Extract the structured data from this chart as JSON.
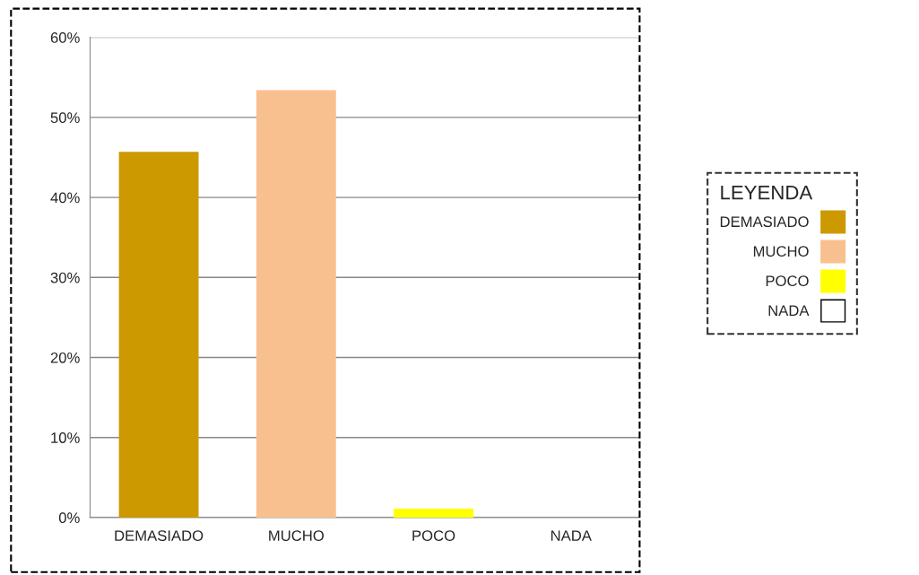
{
  "chart_data": {
    "type": "bar",
    "categories": [
      "DEMASIADO",
      "MUCHO",
      "POCO",
      "NADA"
    ],
    "stacked": true,
    "series": [
      {
        "name": "DEMASIADO",
        "color": "#cc9900",
        "values": [
          45.7,
          null,
          null,
          null
        ]
      },
      {
        "name": "MUCHO",
        "color": "#f9c08f",
        "values": [
          null,
          53.4,
          null,
          null
        ]
      },
      {
        "name": "POCO",
        "color": "#ffff00",
        "values": [
          null,
          null,
          1.1,
          null
        ]
      },
      {
        "name": "NADA",
        "color": "#ffffff",
        "values": [
          null,
          null,
          null,
          0
        ]
      }
    ],
    "ylim": [
      0,
      60
    ],
    "yticks": [
      {
        "value": 0,
        "label": "0%"
      },
      {
        "value": 10,
        "label": "10%"
      },
      {
        "value": 20,
        "label": "20%"
      },
      {
        "value": 30,
        "label": "30%"
      },
      {
        "value": 40,
        "label": "40%"
      },
      {
        "value": 50,
        "label": "50%"
      },
      {
        "value": 60,
        "label": "60%"
      }
    ],
    "grid": "y",
    "legend": "right",
    "legend_title": "LEYENDA"
  }
}
